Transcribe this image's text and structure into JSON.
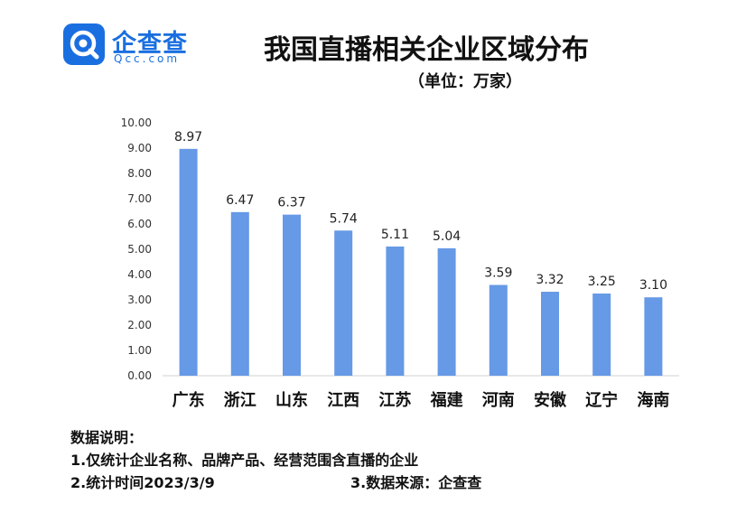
{
  "logo": {
    "name_cn": "企查查",
    "name_en": "Qcc.com"
  },
  "title": "我国直播相关企业区域分布",
  "subtitle": "（单位：万家）",
  "chart_data": {
    "type": "bar",
    "categories": [
      "广东",
      "浙江",
      "山东",
      "江西",
      "江苏",
      "福建",
      "河南",
      "安徽",
      "辽宁",
      "海南"
    ],
    "values": [
      8.97,
      6.47,
      6.37,
      5.74,
      5.11,
      5.04,
      3.59,
      3.32,
      3.25,
      3.1
    ],
    "data_labels": [
      "8.97",
      "6.47",
      "6.37",
      "5.74",
      "5.11",
      "5.04",
      "3.59",
      "3.32",
      "3.25",
      "3.10"
    ],
    "ylim": [
      0,
      10
    ],
    "yticks": [
      "0.00",
      "1.00",
      "2.00",
      "3.00",
      "4.00",
      "5.00",
      "6.00",
      "7.00",
      "8.00",
      "9.00",
      "10.00"
    ],
    "grid": false,
    "legend": "none",
    "bar_color": "#6699e6",
    "title": "我国直播相关企业区域分布",
    "xlabel": "",
    "ylabel": ""
  },
  "notes": {
    "heading": "数据说明：",
    "line1": "1.仅统计企业名称、品牌产品、经营范围含直播的企业",
    "line2": "2.统计时间2023/3/9",
    "source": "3.数据来源：企查查"
  }
}
